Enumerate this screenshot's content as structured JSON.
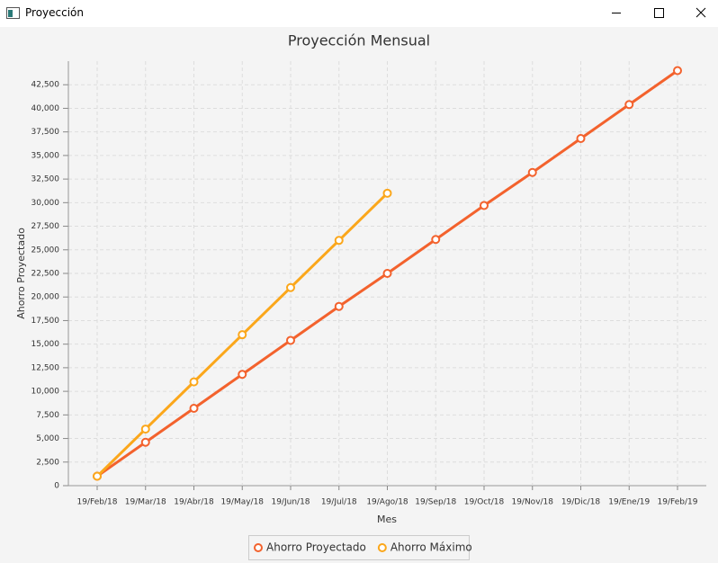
{
  "window_title": "Proyección",
  "chart_data": {
    "type": "line",
    "title": "Proyección Mensual",
    "x_label": "Mes",
    "y_label": "Ahorro Proyectado",
    "categories": [
      "19/Feb/18",
      "19/Mar/18",
      "19/Abr/18",
      "19/May/18",
      "19/Jun/18",
      "19/Jul/18",
      "19/Ago/18",
      "19/Sep/18",
      "19/Oct/18",
      "19/Nov/18",
      "19/Dic/18",
      "19/Ene/19",
      "19/Feb/19"
    ],
    "series": [
      {
        "name": "Ahorro Proyectado",
        "color": "#f3622d",
        "values": [
          1000,
          4600,
          8200,
          11800,
          15400,
          19000,
          22500,
          26100,
          29700,
          33200,
          36800,
          40400,
          44000
        ]
      },
      {
        "name": "Ahorro Máximo",
        "color": "#fba71b",
        "values": [
          1000,
          6000,
          11000,
          16000,
          21000,
          26000,
          31000,
          null,
          null,
          null,
          null,
          null,
          null
        ]
      }
    ],
    "ylim": [
      0,
      45000
    ],
    "yticks": [
      0,
      {
        "value": 2500,
        "label": "2,500"
      },
      {
        "value": 5000,
        "label": "5,000"
      },
      {
        "value": 7500,
        "label": "7,500"
      },
      {
        "value": 10000,
        "label": "10,000"
      },
      {
        "value": 12500,
        "label": "12,500"
      },
      {
        "value": 15000,
        "label": "15,000"
      },
      {
        "value": 17500,
        "label": "17,500"
      },
      {
        "value": 20000,
        "label": "20,000"
      },
      {
        "value": 22500,
        "label": "22,500"
      },
      {
        "value": 25000,
        "label": "25,000"
      },
      {
        "value": 27500,
        "label": "27,500"
      },
      {
        "value": 30000,
        "label": "30,000"
      },
      {
        "value": 32500,
        "label": "32,500"
      },
      {
        "value": 35000,
        "label": "35,000"
      },
      {
        "value": 37500,
        "label": "37,500"
      },
      {
        "value": 40000,
        "label": "40,000"
      },
      {
        "value": 42500,
        "label": "42,500"
      }
    ],
    "grid": true,
    "legend": "bottom"
  }
}
